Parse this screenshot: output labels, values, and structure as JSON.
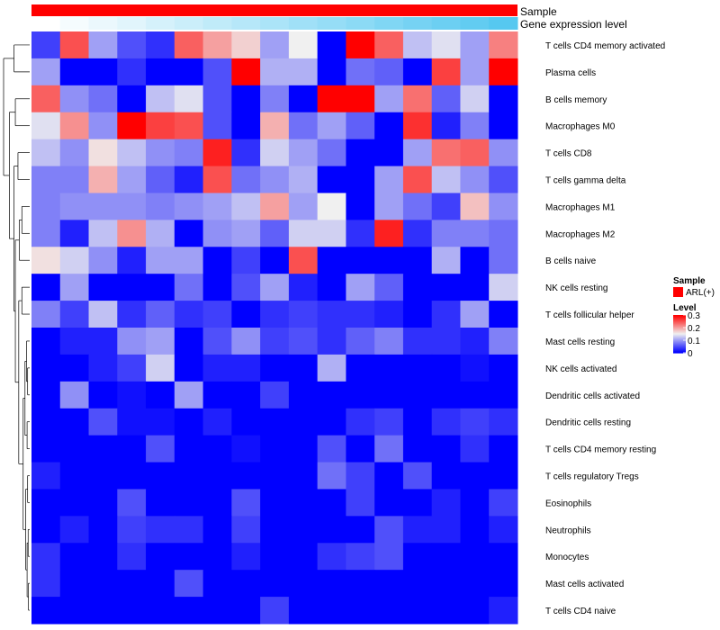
{
  "chart_data": {
    "type": "heatmap",
    "title": "",
    "annotation_tracks": [
      {
        "label": "Sample"
      },
      {
        "label": "Gene expression level"
      }
    ],
    "rows": [
      "T cells CD4 memory activated",
      "Plasma cells",
      "B cells memory",
      "Macrophages M0",
      "T cells CD8",
      "T cells gamma delta",
      "Macrophages M1",
      "Macrophages M2",
      "B cells naive",
      "NK cells resting",
      "T cells follicular helper",
      "Mast cells resting",
      "NK cells activated",
      "Dendritic cells activated",
      "Dendritic cells resting",
      "T cells CD4 memory resting",
      "T cells regulatory  Tregs",
      "Eosinophils",
      "Neutrophils",
      "Monocytes",
      "Mast cells activated",
      "T cells CD4 naive"
    ],
    "n_columns": 17,
    "values": [
      [
        0.04,
        0.25,
        0.1,
        0.05,
        0.03,
        0.24,
        0.2,
        0.17,
        0.1,
        0.15,
        0.0,
        0.3,
        0.24,
        0.12,
        0.14,
        0.1,
        0.22
      ],
      [
        0.1,
        0.0,
        0.0,
        0.03,
        0.0,
        0.0,
        0.05,
        0.3,
        0.11,
        0.11,
        0.0,
        0.07,
        0.06,
        0.0,
        0.26,
        0.1,
        0.3
      ],
      [
        0.24,
        0.09,
        0.07,
        0.0,
        0.12,
        0.14,
        0.05,
        0.0,
        0.08,
        0.0,
        0.3,
        0.3,
        0.1,
        0.23,
        0.06,
        0.13,
        0.0
      ],
      [
        0.14,
        0.21,
        0.09,
        0.3,
        0.26,
        0.25,
        0.05,
        0.0,
        0.19,
        0.07,
        0.1,
        0.06,
        0.0,
        0.27,
        0.02,
        0.08,
        0.0
      ],
      [
        0.12,
        0.09,
        0.16,
        0.12,
        0.09,
        0.08,
        0.28,
        0.03,
        0.13,
        0.1,
        0.07,
        0.0,
        0.0,
        0.1,
        0.23,
        0.24,
        0.09
      ],
      [
        0.08,
        0.08,
        0.19,
        0.1,
        0.06,
        0.02,
        0.25,
        0.07,
        0.09,
        0.11,
        0.0,
        0.0,
        0.1,
        0.25,
        0.12,
        0.09,
        0.05
      ],
      [
        0.08,
        0.09,
        0.09,
        0.09,
        0.08,
        0.09,
        0.1,
        0.12,
        0.2,
        0.1,
        0.15,
        0.0,
        0.1,
        0.07,
        0.04,
        0.18,
        0.09
      ],
      [
        0.08,
        0.02,
        0.12,
        0.21,
        0.11,
        0.0,
        0.09,
        0.1,
        0.06,
        0.13,
        0.13,
        0.03,
        0.28,
        0.03,
        0.08,
        0.08,
        0.07
      ],
      [
        0.16,
        0.13,
        0.09,
        0.02,
        0.1,
        0.1,
        0.0,
        0.04,
        0.0,
        0.25,
        0.0,
        0.0,
        0.0,
        0.0,
        0.11,
        0.0,
        0.07
      ],
      [
        0.0,
        0.1,
        0.0,
        0.0,
        0.0,
        0.07,
        0.0,
        0.05,
        0.1,
        0.02,
        0.0,
        0.1,
        0.06,
        0.0,
        0.0,
        0.0,
        0.13
      ],
      [
        0.08,
        0.04,
        0.12,
        0.03,
        0.06,
        0.03,
        0.04,
        0.0,
        0.03,
        0.04,
        0.03,
        0.03,
        0.02,
        0.0,
        0.03,
        0.1,
        0.0
      ],
      [
        0.0,
        0.02,
        0.02,
        0.09,
        0.1,
        0.0,
        0.05,
        0.09,
        0.04,
        0.05,
        0.03,
        0.06,
        0.08,
        0.03,
        0.03,
        0.02,
        0.08
      ],
      [
        0.0,
        0.0,
        0.02,
        0.04,
        0.13,
        0.0,
        0.02,
        0.02,
        0.0,
        0.0,
        0.11,
        0.0,
        0.0,
        0.0,
        0.0,
        0.01,
        0.0
      ],
      [
        0.0,
        0.09,
        0.0,
        0.01,
        0.0,
        0.1,
        0.0,
        0.0,
        0.04,
        0.0,
        0.0,
        0.0,
        0.0,
        0.0,
        0.0,
        0.0,
        0.0
      ],
      [
        0.0,
        0.0,
        0.05,
        0.01,
        0.01,
        0.0,
        0.02,
        0.0,
        0.0,
        0.0,
        0.0,
        0.03,
        0.04,
        0.0,
        0.03,
        0.04,
        0.03
      ],
      [
        0.0,
        0.0,
        0.0,
        0.0,
        0.05,
        0.0,
        0.0,
        0.01,
        0.0,
        0.0,
        0.05,
        0.0,
        0.07,
        0.0,
        0.0,
        0.03,
        0.0
      ],
      [
        0.02,
        0.0,
        0.0,
        0.0,
        0.0,
        0.0,
        0.0,
        0.0,
        0.0,
        0.0,
        0.07,
        0.04,
        0.0,
        0.05,
        0.0,
        0.0,
        0.0
      ],
      [
        0.0,
        0.0,
        0.0,
        0.05,
        0.0,
        0.0,
        0.0,
        0.05,
        0.0,
        0.0,
        0.0,
        0.04,
        0.0,
        0.0,
        0.02,
        0.0,
        0.04
      ],
      [
        0.0,
        0.02,
        0.0,
        0.04,
        0.03,
        0.03,
        0.0,
        0.04,
        0.0,
        0.0,
        0.0,
        0.0,
        0.05,
        0.02,
        0.02,
        0.0,
        0.02
      ],
      [
        0.03,
        0.0,
        0.0,
        0.03,
        0.0,
        0.0,
        0.0,
        0.02,
        0.0,
        0.0,
        0.03,
        0.04,
        0.05,
        0.0,
        0.0,
        0.0,
        0.0
      ],
      [
        0.03,
        0.0,
        0.0,
        0.0,
        0.0,
        0.05,
        0.0,
        0.0,
        0.0,
        0.0,
        0.0,
        0.0,
        0.0,
        0.0,
        0.0,
        0.0,
        0.0
      ],
      [
        0.0,
        0.0,
        0.0,
        0.0,
        0.0,
        0.0,
        0.0,
        0.0,
        0.04,
        0.0,
        0.0,
        0.0,
        0.0,
        0.0,
        0.0,
        0.0,
        0.02
      ]
    ],
    "gene_expression_track": [
      0.0,
      0.06,
      0.12,
      0.18,
      0.25,
      0.31,
      0.37,
      0.43,
      0.5,
      0.56,
      0.62,
      0.68,
      0.75,
      0.81,
      0.87,
      0.93,
      1.0
    ],
    "colorscale": {
      "min": 0,
      "mid": 0.15,
      "max": 0.3,
      "low_color": "#0000FF",
      "mid_color": "#F0F0F0",
      "high_color": "#FF0000"
    },
    "legend": {
      "sample_title": "Sample",
      "sample_item": "ARL(+)",
      "sample_color": "#FF0000",
      "level_title": "Level",
      "level_ticks": [
        "0.3",
        "0.2",
        "0.1",
        "0"
      ],
      "level_tick_values": [
        0.3,
        0.2,
        0.1,
        0
      ]
    },
    "expression_track_colors": {
      "low": "#FFFFFF",
      "high": "#56C8F0"
    }
  }
}
